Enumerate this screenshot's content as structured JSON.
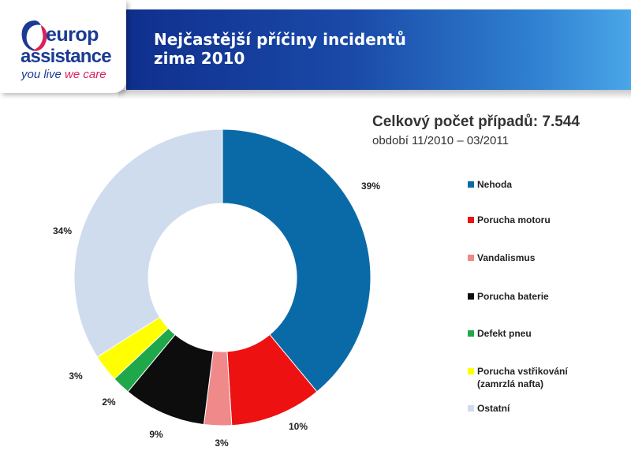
{
  "logo": {
    "line1": "europ",
    "line2": "assistance",
    "tagline_part1": "you live",
    "tagline_part2": "we care",
    "colors": {
      "navy": "#1a3a93",
      "pink": "#d8235a"
    }
  },
  "header": {
    "title_line1": "Nejčastější příčiny incidentů",
    "title_line2": "zima 2010"
  },
  "summary": {
    "total": "Celkový počet případů: 7.544",
    "period": "období 11/2010 – 03/2011"
  },
  "chart_data": {
    "type": "pie",
    "donut": true,
    "legend_position": "right",
    "slices": [
      {
        "name": "Nehoda",
        "value": 39,
        "label": "39%",
        "color": "#0a6aa8"
      },
      {
        "name": "Porucha motoru",
        "value": 10,
        "label": "10%",
        "color": "#ee1111"
      },
      {
        "name": "Vandalismus",
        "value": 3,
        "label": "3%",
        "color": "#f08a8a"
      },
      {
        "name": "Porucha baterie",
        "value": 9,
        "label": "9%",
        "color": "#0d0d0d"
      },
      {
        "name": "Defekt pneu",
        "value": 2,
        "label": "2%",
        "color": "#1fa84a"
      },
      {
        "name": "Porucha vstřikování (zamrzlá nafta)",
        "value": 3,
        "label": "3%",
        "color": "#ffff00"
      },
      {
        "name": "Ostatní",
        "value": 34,
        "label": "34%",
        "color": "#cfdcee"
      }
    ],
    "legend": [
      {
        "lines": [
          "Nehoda"
        ]
      },
      {
        "lines": [
          "Porucha motoru"
        ]
      },
      {
        "lines": [
          "Vandalismus"
        ]
      },
      {
        "lines": [
          "Porucha baterie"
        ]
      },
      {
        "lines": [
          "Defekt pneu"
        ]
      },
      {
        "lines": [
          "Porucha vstřikování",
          "(zamrzlá nafta)"
        ]
      },
      {
        "lines": [
          "Ostatní"
        ]
      }
    ]
  }
}
